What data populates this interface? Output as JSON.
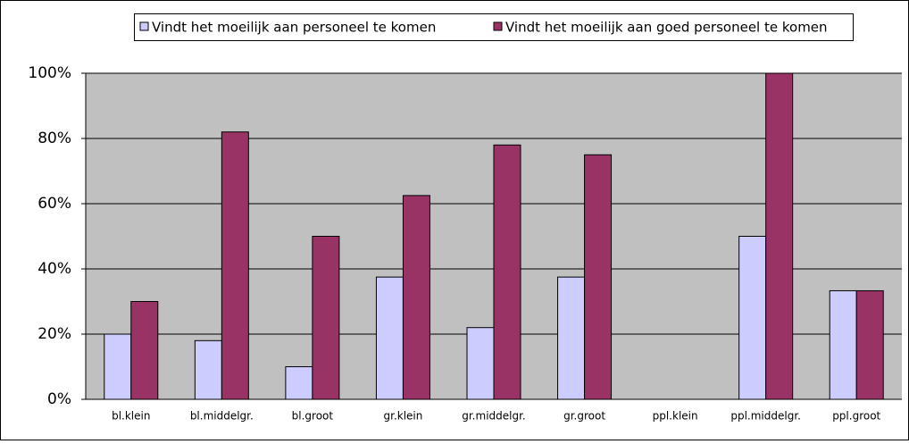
{
  "chart_data": {
    "type": "bar",
    "categories": [
      "bl.klein",
      "bl.middelgr.",
      "bl.groot",
      "gr.klein",
      "gr.middelgr.",
      "gr.groot",
      "ppl.klein",
      "ppl.middelgr.",
      "ppl.groot"
    ],
    "series": [
      {
        "name": "Vindt het moeilijk aan personeel te komen",
        "color": "#ccccff",
        "values": [
          20,
          18,
          10,
          37.5,
          22,
          37.5,
          0,
          50,
          33.3
        ]
      },
      {
        "name": "Vindt het moeilijk aan goed personeel te komen",
        "color": "#993366",
        "values": [
          30,
          82,
          50,
          62.5,
          78,
          75,
          0,
          100,
          33.3
        ]
      }
    ],
    "ylim": [
      0,
      100
    ],
    "yticks": [
      {
        "value": 0,
        "label": "0%"
      },
      {
        "value": 20,
        "label": "20%"
      },
      {
        "value": 40,
        "label": "40%"
      },
      {
        "value": 60,
        "label": "60%"
      },
      {
        "value": 80,
        "label": "80%"
      },
      {
        "value": 100,
        "label": "100%"
      }
    ],
    "grid": true,
    "legend": "top"
  }
}
